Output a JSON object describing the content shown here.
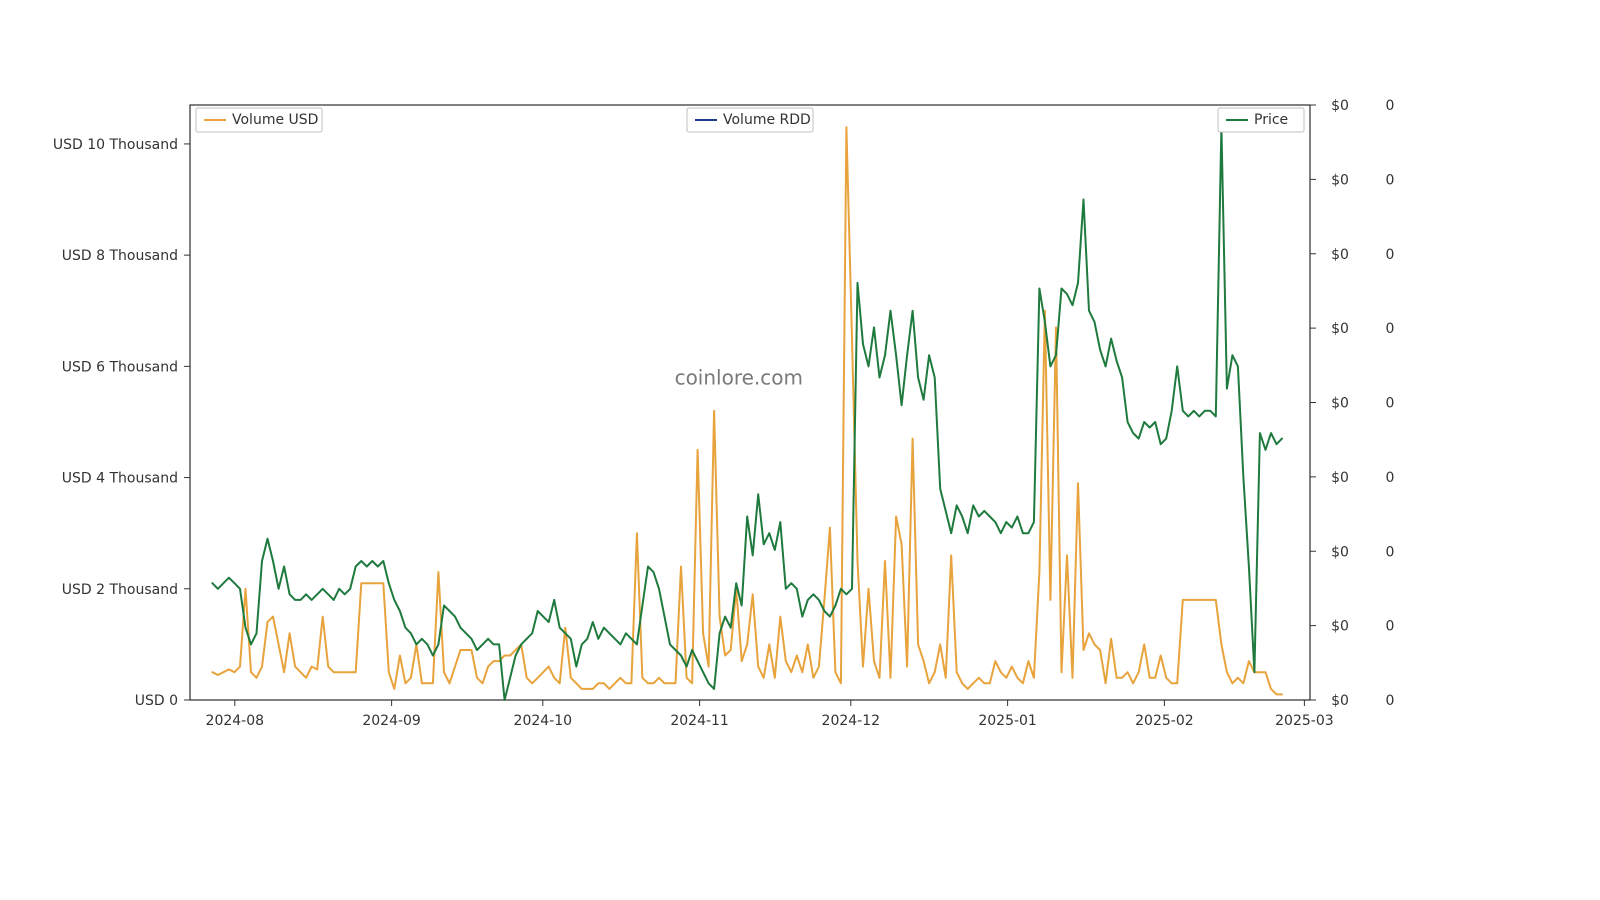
{
  "chart": {
    "type": "line",
    "background_color": "#ffffff",
    "plot_border_color": "#000000",
    "watermark": "coinlore.com",
    "watermark_color": "#7a7a7a",
    "watermark_fontsize": 20,
    "x": {
      "ticks": [
        "2024-08",
        "2024-09",
        "2024-10",
        "2024-11",
        "2024-12",
        "2025-01",
        "2025-02",
        "2025-03"
      ],
      "tick_positions": [
        0.04,
        0.18,
        0.315,
        0.455,
        0.59,
        0.73,
        0.87,
        0.995
      ]
    },
    "y_left": {
      "label_prefix": "USD ",
      "label_suffix": " Thousand",
      "ticks": [
        0,
        2,
        4,
        6,
        8,
        10
      ],
      "max": 10.7
    },
    "y_right1": {
      "ticks": [
        "$0",
        "$0",
        "$0",
        "$0",
        "$0",
        "$0",
        "$0",
        "$0",
        "$0"
      ]
    },
    "y_right2": {
      "ticks": [
        "0",
        "0",
        "0",
        "0",
        "0",
        "0",
        "0",
        "0",
        "0"
      ]
    },
    "legend": [
      {
        "label": "Volume USD",
        "color": "#e8a33d",
        "pos": "left"
      },
      {
        "label": "Volume RDD",
        "color": "#1f3b8b",
        "pos": "center"
      },
      {
        "label": "Price",
        "color": "#1f7a3e",
        "pos": "right"
      }
    ],
    "colors": {
      "volume_usd": "#e8a33d",
      "price": "#1f7a3e",
      "volume_rdd": "#1f3b8b",
      "axis_text": "#333333"
    },
    "line_width": 2,
    "series": {
      "volume_usd": [
        0.5,
        0.45,
        0.5,
        0.55,
        0.5,
        0.6,
        2.0,
        0.5,
        0.4,
        0.6,
        1.4,
        1.5,
        1.0,
        0.5,
        1.2,
        0.6,
        0.5,
        0.4,
        0.6,
        0.55,
        1.5,
        0.6,
        0.5,
        0.5,
        0.5,
        0.5,
        0.5,
        2.1,
        2.1,
        2.1,
        2.1,
        2.1,
        0.5,
        0.2,
        0.8,
        0.3,
        0.4,
        1.0,
        0.3,
        0.3,
        0.3,
        2.3,
        0.5,
        0.3,
        0.6,
        0.9,
        0.9,
        0.9,
        0.4,
        0.3,
        0.6,
        0.7,
        0.7,
        0.8,
        0.8,
        0.9,
        1.0,
        0.4,
        0.3,
        0.4,
        0.5,
        0.6,
        0.4,
        0.3,
        1.3,
        0.4,
        0.3,
        0.2,
        0.2,
        0.2,
        0.3,
        0.3,
        0.2,
        0.3,
        0.4,
        0.3,
        0.3,
        3.0,
        0.4,
        0.3,
        0.3,
        0.4,
        0.3,
        0.3,
        0.3,
        2.4,
        0.4,
        0.3,
        4.5,
        1.2,
        0.6,
        5.2,
        1.5,
        0.8,
        0.9,
        2.0,
        0.7,
        1.0,
        1.9,
        0.6,
        0.4,
        1.0,
        0.4,
        1.5,
        0.7,
        0.5,
        0.8,
        0.5,
        1.0,
        0.4,
        0.6,
        1.8,
        3.1,
        0.5,
        0.3,
        10.3,
        6.5,
        2.5,
        0.6,
        2.0,
        0.7,
        0.4,
        2.5,
        0.4,
        3.3,
        2.8,
        0.6,
        4.7,
        1.0,
        0.7,
        0.3,
        0.5,
        1.0,
        0.4,
        2.6,
        0.5,
        0.3,
        0.2,
        0.3,
        0.4,
        0.3,
        0.3,
        0.7,
        0.5,
        0.4,
        0.6,
        0.4,
        0.3,
        0.7,
        0.4,
        2.3,
        7.0,
        1.8,
        6.7,
        0.5,
        2.6,
        0.4,
        3.9,
        0.9,
        1.2,
        1.0,
        0.9,
        0.3,
        1.1,
        0.4,
        0.4,
        0.5,
        0.3,
        0.5,
        1.0,
        0.4,
        0.4,
        0.8,
        0.4,
        0.3,
        0.3,
        1.8,
        1.8,
        1.8,
        1.8,
        1.8,
        1.8,
        1.8,
        1.0,
        0.5,
        0.3,
        0.4,
        0.3,
        0.7,
        0.5,
        0.5,
        0.5,
        0.2,
        0.1,
        0.1
      ],
      "price": [
        2.1,
        2.0,
        2.1,
        2.2,
        2.1,
        2.0,
        1.3,
        1.0,
        1.2,
        2.5,
        2.9,
        2.5,
        2.0,
        2.4,
        1.9,
        1.8,
        1.8,
        1.9,
        1.8,
        1.9,
        2.0,
        1.9,
        1.8,
        2.0,
        1.9,
        2.0,
        2.4,
        2.5,
        2.4,
        2.5,
        2.4,
        2.5,
        2.1,
        1.8,
        1.6,
        1.3,
        1.2,
        1.0,
        1.1,
        1.0,
        0.8,
        1.0,
        1.7,
        1.6,
        1.5,
        1.3,
        1.2,
        1.1,
        0.9,
        1.0,
        1.1,
        1.0,
        1.0,
        0.0,
        0.4,
        0.8,
        1.0,
        1.1,
        1.2,
        1.6,
        1.5,
        1.4,
        1.8,
        1.3,
        1.2,
        1.1,
        0.6,
        1.0,
        1.1,
        1.4,
        1.1,
        1.3,
        1.2,
        1.1,
        1.0,
        1.2,
        1.1,
        1.0,
        1.7,
        2.4,
        2.3,
        2.0,
        1.5,
        1.0,
        0.9,
        0.8,
        0.6,
        0.9,
        0.7,
        0.5,
        0.3,
        0.2,
        1.2,
        1.5,
        1.3,
        2.1,
        1.7,
        3.3,
        2.6,
        3.7,
        2.8,
        3.0,
        2.7,
        3.2,
        2.0,
        2.1,
        2.0,
        1.5,
        1.8,
        1.9,
        1.8,
        1.6,
        1.5,
        1.7,
        2.0,
        1.9,
        2.0,
        7.5,
        6.4,
        6.0,
        6.7,
        5.8,
        6.2,
        7.0,
        6.2,
        5.3,
        6.2,
        7.0,
        5.8,
        5.4,
        6.2,
        5.8,
        3.8,
        3.4,
        3.0,
        3.5,
        3.3,
        3.0,
        3.5,
        3.3,
        3.4,
        3.3,
        3.2,
        3.0,
        3.2,
        3.1,
        3.3,
        3.0,
        3.0,
        3.2,
        7.4,
        6.8,
        6.0,
        6.2,
        7.4,
        7.3,
        7.1,
        7.5,
        9.0,
        7.0,
        6.8,
        6.3,
        6.0,
        6.5,
        6.1,
        5.8,
        5.0,
        4.8,
        4.7,
        5.0,
        4.9,
        5.0,
        4.6,
        4.7,
        5.2,
        6.0,
        5.2,
        5.1,
        5.2,
        5.1,
        5.2,
        5.2,
        5.1,
        10.3,
        5.6,
        6.2,
        6.0,
        4.0,
        2.4,
        0.5,
        4.8,
        4.5,
        4.8,
        4.6,
        4.7
      ]
    }
  }
}
